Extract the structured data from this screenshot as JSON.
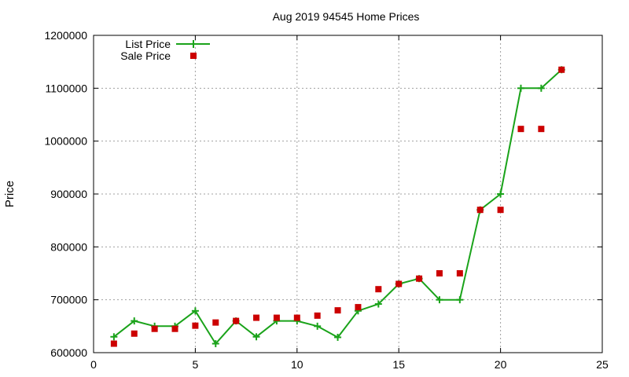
{
  "chart_data": {
    "type": "line",
    "title": "Aug 2019 94545 Home Prices",
    "xlabel": "",
    "ylabel": "Price",
    "xlim": [
      0,
      25
    ],
    "ylim": [
      600000,
      1200000
    ],
    "xticks": [
      0,
      5,
      10,
      15,
      20,
      25
    ],
    "yticks": [
      600000,
      700000,
      800000,
      900000,
      1000000,
      1100000,
      1200000
    ],
    "xtick_labels": [
      "0",
      "5",
      "10",
      "15",
      "20",
      "25"
    ],
    "ytick_labels": [
      "600000",
      "700000",
      "800000",
      "900000",
      "1000000",
      "1100000",
      "1200000"
    ],
    "grid": true,
    "legend_position": "top-left",
    "series": [
      {
        "name": "List Price",
        "style": "line with plus markers",
        "color": "#1aa31a",
        "x": [
          1,
          2,
          3,
          4,
          5,
          6,
          7,
          8,
          9,
          10,
          11,
          12,
          13,
          14,
          15,
          16,
          17,
          18,
          19,
          20,
          21,
          22,
          23
        ],
        "y": [
          630000,
          660000,
          650000,
          650000,
          679000,
          617000,
          660000,
          630000,
          660000,
          660000,
          650000,
          629000,
          679000,
          692000,
          730000,
          740000,
          700000,
          700000,
          870000,
          900000,
          1100000,
          1100000,
          1135000
        ]
      },
      {
        "name": "Sale Price",
        "style": "square markers",
        "color": "#cc0000",
        "x": [
          1,
          2,
          3,
          4,
          5,
          6,
          7,
          8,
          9,
          10,
          11,
          12,
          13,
          14,
          15,
          16,
          17,
          18,
          19,
          20,
          21,
          22,
          23
        ],
        "y": [
          617000,
          636000,
          645000,
          645000,
          651000,
          657000,
          660000,
          666000,
          666000,
          666000,
          670000,
          680000,
          686000,
          720000,
          730000,
          740000,
          750000,
          750000,
          870000,
          870000,
          1023000,
          1023000,
          1135000
        ]
      }
    ]
  }
}
